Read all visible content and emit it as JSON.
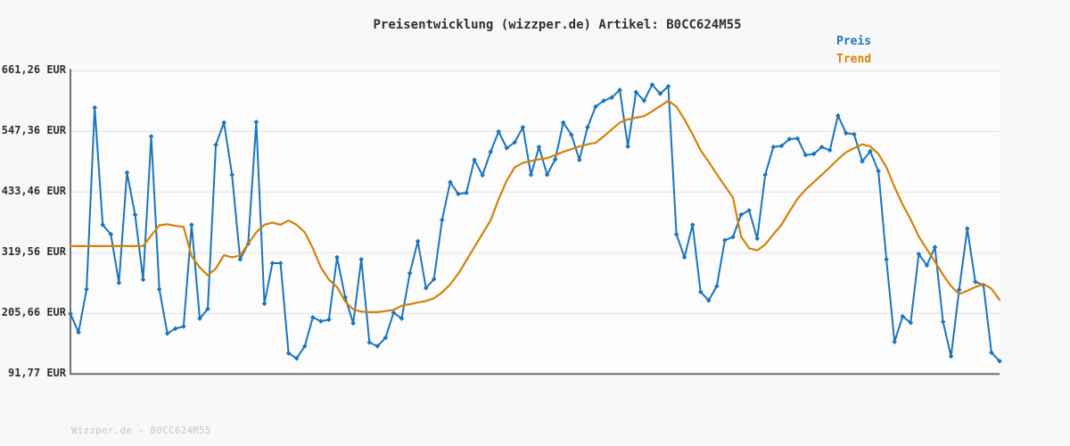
{
  "title": "Preisentwicklung (wizzper.de) Artikel: B0CC624M55",
  "footer": "Wizzper.de - B0CC624M55",
  "colors": {
    "background": "#f8f8f8",
    "plot_background": "#fcfcfc",
    "grid": "#e4e4e4",
    "axis": "#6f6f6f",
    "title_text": "#2f2f2f",
    "tick_text": "#2f2f2f",
    "watermark_text": "#c4c4c4",
    "preis": "#1b75bb",
    "trend": "#d4820a"
  },
  "chart_data": {
    "type": "line",
    "title": "Preisentwicklung (wizzper.de) Artikel: B0CC624M55",
    "xlabel": "",
    "ylabel": "EUR",
    "grid": true,
    "legend_position": "top-right",
    "x_tick_labels_visible": false,
    "ylim": [
      91.77,
      661.26
    ],
    "y_ticks": [
      {
        "value": 661.26,
        "label": "661,26 EUR"
      },
      {
        "value": 547.36,
        "label": "547,36 EUR"
      },
      {
        "value": 433.46,
        "label": "433,46 EUR"
      },
      {
        "value": 319.56,
        "label": "319,56 EUR"
      },
      {
        "value": 205.66,
        "label": "205,66 EUR"
      },
      {
        "value": 91.77,
        "label": "91,77 EUR"
      }
    ],
    "series": [
      {
        "name": "Preis",
        "color": "#1b75bb",
        "marker": "diamond",
        "values": [
          205,
          170,
          251,
          592,
          372,
          354,
          263,
          470,
          391,
          269,
          538,
          251,
          168,
          177,
          181,
          372,
          196,
          214,
          522,
          564,
          466,
          307,
          336,
          565,
          224,
          300,
          300,
          131,
          121,
          144,
          198,
          191,
          194,
          311,
          236,
          187,
          307,
          151,
          144,
          160,
          207,
          196,
          281,
          341,
          253,
          270,
          381,
          452,
          430,
          432,
          494,
          465,
          509,
          547,
          516,
          527,
          555,
          466,
          518,
          466,
          495,
          564,
          541,
          494,
          555,
          594,
          605,
          611,
          625,
          519,
          621,
          605,
          635,
          618,
          632,
          354,
          311,
          372,
          246,
          230,
          257,
          343,
          349,
          391,
          399,
          346,
          466,
          518,
          520,
          533,
          534,
          503,
          505,
          518,
          512,
          577,
          544,
          542,
          491,
          510,
          473,
          307,
          152,
          200,
          188,
          317,
          296,
          330,
          190,
          125,
          250,
          365,
          265,
          259,
          132,
          116
        ]
      },
      {
        "name": "Trend",
        "color": "#d4820a",
        "marker": "none",
        "values": [
          332,
          332,
          332,
          332,
          332,
          332,
          332,
          332,
          332,
          332,
          352,
          371,
          373,
          370,
          368,
          313,
          292,
          277,
          290,
          315,
          311,
          314,
          336,
          358,
          372,
          376,
          372,
          380,
          372,
          358,
          328,
          292,
          269,
          255,
          228,
          213,
          209,
          208,
          208,
          210,
          212,
          220,
          223,
          226,
          229,
          234,
          245,
          260,
          280,
          305,
          330,
          355,
          380,
          420,
          455,
          480,
          488,
          492,
          495,
          497,
          503,
          509,
          514,
          519,
          523,
          526,
          538,
          551,
          564,
          570,
          573,
          576,
          585,
          595,
          605,
          594,
          570,
          542,
          512,
          490,
          467,
          445,
          423,
          350,
          328,
          324,
          335,
          354,
          372,
          397,
          421,
          438,
          452,
          466,
          480,
          495,
          508,
          516,
          523,
          519,
          505,
          480,
          443,
          410,
          382,
          350,
          326,
          303,
          278,
          257,
          242,
          248,
          255,
          261,
          252,
          231
        ]
      }
    ]
  }
}
